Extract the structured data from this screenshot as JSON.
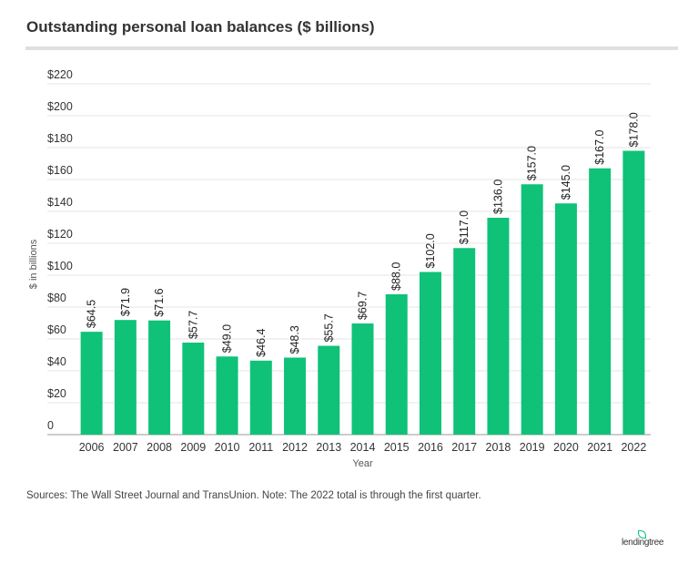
{
  "title": "Outstanding personal loan balances ($ billions)",
  "source": "Sources: The Wall Street Journal and TransUnion. Note: The 2022 total is through the first quarter.",
  "logo": "lendingtree",
  "chart_data": {
    "type": "bar",
    "categories": [
      "2006",
      "2007",
      "2008",
      "2009",
      "2010",
      "2011",
      "2012",
      "2013",
      "2014",
      "2015",
      "2016",
      "2017",
      "2018",
      "2019",
      "2020",
      "2021",
      "2022"
    ],
    "values": [
      64.5,
      71.9,
      71.6,
      57.7,
      49.0,
      46.4,
      48.3,
      55.7,
      69.7,
      88.0,
      102.0,
      117.0,
      136.0,
      157.0,
      145.0,
      167.0,
      178.0
    ],
    "data_labels": [
      "$64.5",
      "$71.9",
      "$71.6",
      "$57.7",
      "$49.0",
      "$46.4",
      "$48.3",
      "$55.7",
      "$69.7",
      "$88.0",
      "$102.0",
      "$117.0",
      "$136.0",
      "$157.0",
      "$145.0",
      "$167.0",
      "$178.0"
    ],
    "xlabel": "Year",
    "ylabel": "$ in billions",
    "ylim": [
      0,
      220
    ],
    "yticks": [
      0,
      20,
      40,
      60,
      80,
      100,
      120,
      140,
      160,
      180,
      200,
      220
    ],
    "ytick_labels": [
      "0",
      "$20",
      "$40",
      "$60",
      "$80",
      "$100",
      "$120",
      "$140",
      "$160",
      "$180",
      "$200",
      "$220"
    ],
    "grid": true,
    "bar_color": "#0fc278"
  }
}
